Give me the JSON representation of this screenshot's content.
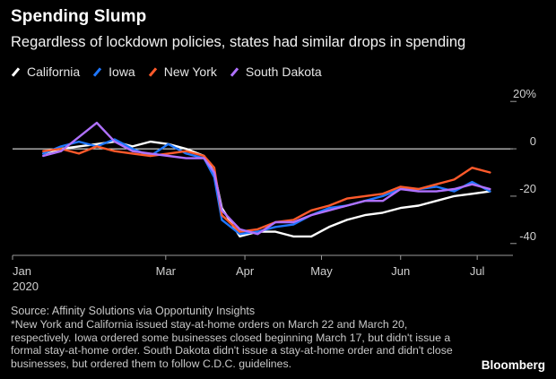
{
  "title": "Spending Slump",
  "subtitle": "Regardless of lockdown policies, states had similar drops in spending",
  "source": "Source: Affinity Solutions via Opportunity Insights",
  "note": "*New York and California issued stay-at-home orders on March 22 and March 20, respectively. Iowa ordered some businesses closed beginning March 17, but didn't issue a formal stay-at-home order. South Dakota didn't issue a stay-at-home order and didn't close businesses, but ordered them to follow C.D.C. guidelines.",
  "brand": "Bloomberg",
  "chart_data": {
    "type": "line",
    "title": "Spending Slump",
    "subtitle": "Regardless of lockdown policies, states had similar drops in spending",
    "x_tick_labels": [
      "Jan",
      "Mar",
      "Apr",
      "May",
      "Jun",
      "Jul"
    ],
    "x_year_label": "2020",
    "y_tick_labels": [
      "20%",
      "0",
      "-20",
      "-40"
    ],
    "y_ticks": [
      20,
      0,
      -20,
      -40
    ],
    "ylim": [
      -45,
      25
    ],
    "legend_position": "top-left",
    "grid": false,
    "series": [
      {
        "name": "California",
        "color": "#ffffff",
        "x": [
          "2020-01-13",
          "2020-01-20",
          "2020-01-27",
          "2020-02-03",
          "2020-02-10",
          "2020-02-17",
          "2020-02-24",
          "2020-03-02",
          "2020-03-09",
          "2020-03-16",
          "2020-03-20",
          "2020-03-23",
          "2020-03-30",
          "2020-04-06",
          "2020-04-13",
          "2020-04-20",
          "2020-04-27",
          "2020-05-04",
          "2020-05-11",
          "2020-05-18",
          "2020-05-25",
          "2020-06-01",
          "2020-06-08",
          "2020-06-15",
          "2020-06-22",
          "2020-06-29",
          "2020-07-06"
        ],
        "values": [
          -2,
          0,
          1,
          2,
          3,
          1,
          3,
          2,
          0,
          -3,
          -10,
          -25,
          -37,
          -35,
          -35,
          -37,
          -37,
          -33,
          -30,
          -28,
          -27,
          -25,
          -24,
          -22,
          -20,
          -19,
          -18
        ]
      },
      {
        "name": "Iowa",
        "color": "#1f77ff",
        "x": [
          "2020-01-13",
          "2020-01-20",
          "2020-01-27",
          "2020-02-03",
          "2020-02-10",
          "2020-02-17",
          "2020-02-24",
          "2020-03-02",
          "2020-03-09",
          "2020-03-16",
          "2020-03-20",
          "2020-03-23",
          "2020-03-30",
          "2020-04-06",
          "2020-04-13",
          "2020-04-20",
          "2020-04-27",
          "2020-05-04",
          "2020-05-11",
          "2020-05-18",
          "2020-05-25",
          "2020-06-01",
          "2020-06-08",
          "2020-06-15",
          "2020-06-22",
          "2020-06-29",
          "2020-07-06"
        ],
        "values": [
          -2,
          1,
          3,
          1,
          4,
          0,
          -3,
          2,
          -2,
          -4,
          -12,
          -30,
          -36,
          -35,
          -33,
          -32,
          -28,
          -25,
          -24,
          -22,
          -20,
          -17,
          -17,
          -16,
          -18,
          -14,
          -18
        ]
      },
      {
        "name": "New York",
        "color": "#ff5a2b",
        "x": [
          "2020-01-13",
          "2020-01-20",
          "2020-01-27",
          "2020-02-03",
          "2020-02-10",
          "2020-02-17",
          "2020-02-24",
          "2020-03-02",
          "2020-03-09",
          "2020-03-16",
          "2020-03-20",
          "2020-03-23",
          "2020-03-30",
          "2020-04-06",
          "2020-04-13",
          "2020-04-20",
          "2020-04-27",
          "2020-05-04",
          "2020-05-11",
          "2020-05-18",
          "2020-05-25",
          "2020-06-01",
          "2020-06-08",
          "2020-06-15",
          "2020-06-22",
          "2020-06-29",
          "2020-07-06"
        ],
        "values": [
          -1,
          0,
          -2,
          1,
          -1,
          -2,
          -3,
          -2,
          -1,
          -3,
          -8,
          -28,
          -35,
          -34,
          -31,
          -30,
          -26,
          -24,
          -21,
          -20,
          -19,
          -16,
          -17,
          -15,
          -13,
          -8,
          -10
        ]
      },
      {
        "name": "South Dakota",
        "color": "#b071ff",
        "x": [
          "2020-01-13",
          "2020-01-20",
          "2020-01-27",
          "2020-02-03",
          "2020-02-10",
          "2020-02-17",
          "2020-02-24",
          "2020-03-02",
          "2020-03-09",
          "2020-03-16",
          "2020-03-20",
          "2020-03-23",
          "2020-03-30",
          "2020-04-06",
          "2020-04-13",
          "2020-04-20",
          "2020-04-27",
          "2020-05-04",
          "2020-05-11",
          "2020-05-18",
          "2020-05-25",
          "2020-06-01",
          "2020-06-08",
          "2020-06-15",
          "2020-06-22",
          "2020-06-29",
          "2020-07-06"
        ],
        "values": [
          -3,
          -1,
          5,
          11,
          3,
          -1,
          -2,
          -3,
          -4,
          -4,
          -10,
          -26,
          -34,
          -36,
          -31,
          -31,
          -28,
          -26,
          -24,
          -22,
          -22,
          -17,
          -18,
          -18,
          -17,
          -15,
          -17
        ]
      }
    ]
  }
}
